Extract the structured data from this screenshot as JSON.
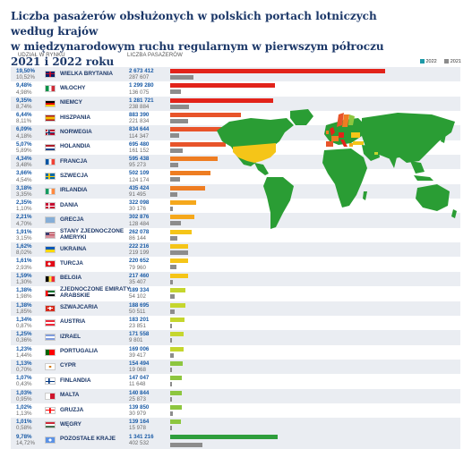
{
  "title_line1": "Liczba pasażerów obsłużonych w polskich portach lotniczych według krajów",
  "title_line2": "w międzynarodowym ruchu regularnym w pierwszym półroczu 2021 i 2022 roku",
  "headers": {
    "share": "UDZIAŁ W RYNKU",
    "count": "LICZBA PASAŻERÓW"
  },
  "legend": [
    {
      "label": "2022",
      "color": "#1e9aa8"
    },
    {
      "label": "2021",
      "color": "#8c8c8c"
    }
  ],
  "chart_data": {
    "type": "bar",
    "series": [
      {
        "name": "2022",
        "color_key": "year2022"
      },
      {
        "name": "2021",
        "color": "#8c8c8c"
      }
    ],
    "rows": [
      {
        "name": "WIELKA BRYTANIA",
        "share_2022": "19,50%",
        "share_2021": "10,52%",
        "v2022": 2673412,
        "v2021": 287607,
        "label_2022": "2 673 412",
        "label_2021": "287 607",
        "bar_color": "#e2231a",
        "flag": "uk"
      },
      {
        "name": "WŁOCHY",
        "share_2022": "9,48%",
        "share_2021": "4,98%",
        "v2022": 1299280,
        "v2021": 136075,
        "label_2022": "1 299 280",
        "label_2021": "136 075",
        "bar_color": "#e2231a",
        "flag": "it"
      },
      {
        "name": "NIEMCY",
        "share_2022": "9,35%",
        "share_2021": "8,74%",
        "v2022": 1281721,
        "v2021": 238884,
        "label_2022": "1 281 721",
        "label_2021": "238 884",
        "bar_color": "#e2231a",
        "flag": "de"
      },
      {
        "name": "HISZPANIA",
        "share_2022": "6,44%",
        "share_2021": "8,11%",
        "v2022": 883390,
        "v2021": 221834,
        "label_2022": "883 390",
        "label_2021": "221 834",
        "bar_color": "#e8542a",
        "flag": "es"
      },
      {
        "name": "NORWEGIA",
        "share_2022": "6,09%",
        "share_2021": "4,18%",
        "v2022": 834644,
        "v2021": 114347,
        "label_2022": "834 644",
        "label_2021": "114 347",
        "bar_color": "#e8542a",
        "flag": "no"
      },
      {
        "name": "HOLANDIA",
        "share_2022": "5,07%",
        "share_2021": "5,89%",
        "v2022": 695480,
        "v2021": 161152,
        "label_2022": "695 480",
        "label_2021": "161 152",
        "bar_color": "#e8542a",
        "flag": "nl"
      },
      {
        "name": "FRANCJA",
        "share_2022": "4,34%",
        "share_2021": "3,48%",
        "v2022": 595438,
        "v2021": 95273,
        "label_2022": "595 438",
        "label_2021": "95 273",
        "bar_color": "#ee7d22",
        "flag": "fr"
      },
      {
        "name": "SZWECJA",
        "share_2022": "3,66%",
        "share_2021": "4,54%",
        "v2022": 502109,
        "v2021": 124174,
        "label_2022": "502 109",
        "label_2021": "124 174",
        "bar_color": "#ee7d22",
        "flag": "se"
      },
      {
        "name": "IRLANDIA",
        "share_2022": "3,18%",
        "share_2021": "3,35%",
        "v2022": 435424,
        "v2021": 91495,
        "label_2022": "435 424",
        "label_2021": "91 495",
        "bar_color": "#ee7d22",
        "flag": "ie"
      },
      {
        "name": "DANIA",
        "share_2022": "2,35%",
        "share_2021": "1,10%",
        "v2022": 322098,
        "v2021": 30176,
        "label_2022": "322 098",
        "label_2021": "30 176",
        "bar_color": "#f5a81c",
        "flag": "dk"
      },
      {
        "name": "GRECJA",
        "share_2022": "2,21%",
        "share_2021": "4,70%",
        "v2022": 302876,
        "v2021": 128484,
        "label_2022": "302 876",
        "label_2021": "128 484",
        "bar_color": "#f5a81c",
        "flag": "gr"
      },
      {
        "name": "STANY ZJEDNOCZONE AMERYKI",
        "share_2022": "1,91%",
        "share_2021": "3,15%",
        "v2022": 262078,
        "v2021": 86144,
        "label_2022": "262 078",
        "label_2021": "86 144",
        "bar_color": "#f5c518",
        "flag": "us"
      },
      {
        "name": "UKRAINA",
        "share_2022": "1,62%",
        "share_2021": "8,02%",
        "v2022": 222216,
        "v2021": 219199,
        "label_2022": "222 216",
        "label_2021": "219 199",
        "bar_color": "#f5c518",
        "flag": "ua"
      },
      {
        "name": "TURCJA",
        "share_2022": "1,61%",
        "share_2021": "2,93%",
        "v2022": 220652,
        "v2021": 79960,
        "label_2022": "220 652",
        "label_2021": "79 960",
        "bar_color": "#f5c518",
        "flag": "tr"
      },
      {
        "name": "BELGIA",
        "share_2022": "1,59%",
        "share_2021": "1,30%",
        "v2022": 217460,
        "v2021": 35407,
        "label_2022": "217 460",
        "label_2021": "35 407",
        "bar_color": "#f5c518",
        "flag": "be"
      },
      {
        "name": "ZJEDNOCZONE EMIRATY ARABSKIE",
        "share_2022": "1,38%",
        "share_2021": "1,98%",
        "v2022": 189334,
        "v2021": 54102,
        "label_2022": "189 334",
        "label_2021": "54 102",
        "bar_color": "#c5d62e",
        "flag": "ae"
      },
      {
        "name": "SZWAJCARIA",
        "share_2022": "1,38%",
        "share_2021": "1,85%",
        "v2022": 188695,
        "v2021": 50511,
        "label_2022": "188 695",
        "label_2021": "50 511",
        "bar_color": "#c5d62e",
        "flag": "ch"
      },
      {
        "name": "AUSTRIA",
        "share_2022": "1,34%",
        "share_2021": "0,87%",
        "v2022": 183201,
        "v2021": 23851,
        "label_2022": "183 201",
        "label_2021": "23 851",
        "bar_color": "#c5d62e",
        "flag": "at"
      },
      {
        "name": "IZRAEL",
        "share_2022": "1,25%",
        "share_2021": "0,36%",
        "v2022": 171558,
        "v2021": 9801,
        "label_2022": "171 558",
        "label_2021": "9 801",
        "bar_color": "#c5d62e",
        "flag": "il"
      },
      {
        "name": "PORTUGALIA",
        "share_2022": "1,23%",
        "share_2021": "1,44%",
        "v2022": 169006,
        "v2021": 39417,
        "label_2022": "169 006",
        "label_2021": "39 417",
        "bar_color": "#c5d62e",
        "flag": "pt"
      },
      {
        "name": "CYPR",
        "share_2022": "1,13%",
        "share_2021": "0,70%",
        "v2022": 154494,
        "v2021": 19068,
        "label_2022": "154 494",
        "label_2021": "19 068",
        "bar_color": "#8dc63f",
        "flag": "cy"
      },
      {
        "name": "FINLANDIA",
        "share_2022": "1,07%",
        "share_2021": "0,43%",
        "v2022": 147047,
        "v2021": 11648,
        "label_2022": "147 047",
        "label_2021": "11 648",
        "bar_color": "#8dc63f",
        "flag": "fi"
      },
      {
        "name": "MALTA",
        "share_2022": "1,03%",
        "share_2021": "0,95%",
        "v2022": 140844,
        "v2021": 25873,
        "label_2022": "140 844",
        "label_2021": "25 873",
        "bar_color": "#8dc63f",
        "flag": "mt"
      },
      {
        "name": "GRUZJA",
        "share_2022": "1,02%",
        "share_2021": "1,13%",
        "v2022": 139850,
        "v2021": 30979,
        "label_2022": "139 850",
        "label_2021": "30 979",
        "bar_color": "#8dc63f",
        "flag": "ge"
      },
      {
        "name": "WĘGRY",
        "share_2022": "1,01%",
        "share_2021": "0,58%",
        "v2022": 139164,
        "v2021": 15978,
        "label_2022": "139 164",
        "label_2021": "15 978",
        "bar_color": "#8dc63f",
        "flag": "hu"
      },
      {
        "name": "POZOSTAŁE KRAJE",
        "share_2022": "9,78%",
        "share_2021": "14,72%",
        "v2022": 1341216,
        "v2021": 402532,
        "label_2022": "1 341 216",
        "label_2021": "402 532",
        "bar_color": "#2e9e3c",
        "flag": "un"
      }
    ],
    "xlim": [
      0,
      2673412
    ]
  },
  "map": {
    "land_color": "#2a9d34",
    "highlight_colors": [
      "#e2231a",
      "#e8542a",
      "#ee7d22",
      "#f5a81c",
      "#f5c518",
      "#c5d62e",
      "#8dc63f"
    ]
  }
}
